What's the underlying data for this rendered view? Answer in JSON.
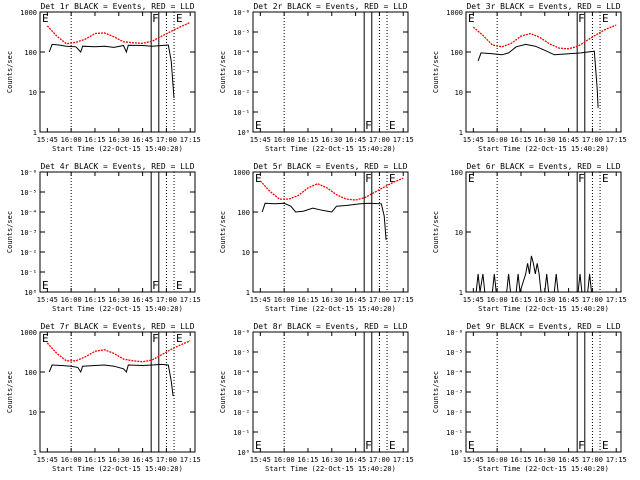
{
  "colors": {
    "events": "#000000",
    "lld": "#ff0000",
    "background": "#ffffff"
  },
  "chart_data": [
    {
      "type": "line",
      "title": "Det 1r BLACK = Events, RED = LLD",
      "xlabel": "Start Time (22-Oct-15 15:40:20)",
      "ylabel": "Counts/sec",
      "xticks": [
        "15:45",
        "16:00",
        "16:15",
        "16:30",
        "16:45",
        "17:00",
        "17:15"
      ],
      "yticks": [
        "1",
        "10",
        "100",
        "1000"
      ],
      "ylim": [
        1,
        1000
      ],
      "yscale": "log",
      "flag_labels": [
        "E",
        "F",
        "E"
      ],
      "series": [
        {
          "values": [
            [
              15.75,
              450
            ],
            [
              15.85,
              250
            ],
            [
              15.95,
              160
            ],
            [
              16.05,
              175
            ],
            [
              16.15,
              210
            ],
            [
              16.25,
              290
            ],
            [
              16.35,
              300
            ],
            [
              16.45,
              240
            ],
            [
              16.55,
              180
            ],
            [
              16.65,
              170
            ],
            [
              16.75,
              165
            ],
            [
              16.85,
              185
            ],
            [
              16.95,
              250
            ],
            [
              17.05,
              330
            ],
            [
              17.15,
              430
            ],
            [
              17.25,
              550
            ]
          ]
        },
        {
          "values": [
            [
              15.77,
              100
            ],
            [
              15.8,
              155
            ],
            [
              15.87,
              150
            ],
            [
              15.95,
              140
            ],
            [
              16.05,
              135
            ],
            [
              16.1,
              100
            ],
            [
              16.12,
              140
            ],
            [
              16.25,
              135
            ],
            [
              16.35,
              140
            ],
            [
              16.45,
              130
            ],
            [
              16.55,
              145
            ],
            [
              16.58,
              100
            ],
            [
              16.6,
              148
            ],
            [
              16.75,
              145
            ],
            [
              16.85,
              140
            ],
            [
              16.95,
              145
            ],
            [
              17.02,
              150
            ],
            [
              17.05,
              60
            ],
            [
              17.08,
              7
            ]
          ]
        }
      ]
    },
    {
      "type": "line",
      "title": "Det 2r BLACK = Events, RED = LLD",
      "xlabel": "Start Time (22-Oct-15 15:40:20)",
      "ylabel": "Counts/sec",
      "xticks": [
        "15:45",
        "16:00",
        "16:15",
        "16:30",
        "16:45",
        "17:00",
        "17:15"
      ],
      "yticks": [
        "10⁰",
        "10⁻¹",
        "10⁻²",
        "10⁻³",
        "10⁻⁴",
        "10⁻⁵",
        "10⁻⁶"
      ],
      "ylim": [
        1,
        1e-06
      ],
      "yscale": "log",
      "flag_labels": [
        "E",
        "F",
        "E"
      ],
      "series": []
    },
    {
      "type": "line",
      "title": "Det 3r BLACK = Events, RED = LLD",
      "xlabel": "Start Time (22-Oct-15 15:40:20)",
      "ylabel": "Counts/sec",
      "xticks": [
        "15:45",
        "16:00",
        "16:15",
        "16:30",
        "16:45",
        "17:00",
        "17:15"
      ],
      "yticks": [
        "1",
        "10",
        "100",
        "1000"
      ],
      "ylim": [
        1,
        1000
      ],
      "yscale": "log",
      "flag_labels": [
        "E",
        "F",
        "E"
      ],
      "series": [
        {
          "values": [
            [
              15.75,
              420
            ],
            [
              15.85,
              260
            ],
            [
              15.95,
              150
            ],
            [
              16.05,
              135
            ],
            [
              16.15,
              165
            ],
            [
              16.25,
              250
            ],
            [
              16.35,
              290
            ],
            [
              16.45,
              230
            ],
            [
              16.55,
              160
            ],
            [
              16.65,
              125
            ],
            [
              16.75,
              120
            ],
            [
              16.85,
              140
            ],
            [
              16.95,
              200
            ],
            [
              17.05,
              280
            ],
            [
              17.15,
              380
            ],
            [
              17.25,
              470
            ]
          ]
        },
        {
          "values": [
            [
              15.8,
              60
            ],
            [
              15.83,
              95
            ],
            [
              15.95,
              90
            ],
            [
              16.05,
              85
            ],
            [
              16.12,
              95
            ],
            [
              16.2,
              135
            ],
            [
              16.3,
              155
            ],
            [
              16.4,
              140
            ],
            [
              16.5,
              110
            ],
            [
              16.6,
              85
            ],
            [
              16.75,
              90
            ],
            [
              16.88,
              95
            ],
            [
              16.95,
              100
            ],
            [
              17.02,
              105
            ],
            [
              17.05,
              12
            ],
            [
              17.06,
              4
            ]
          ]
        }
      ]
    },
    {
      "type": "line",
      "title": "Det 4r BLACK = Events, RED = LLD",
      "xlabel": "Start Time (22-Oct-15 15:40:20)",
      "ylabel": "Counts/sec",
      "xticks": [
        "15:45",
        "16:00",
        "16:15",
        "16:30",
        "16:45",
        "17:00",
        "17:15"
      ],
      "yticks": [
        "10⁰",
        "10⁻¹",
        "10⁻²",
        "10⁻³",
        "10⁻⁴",
        "10⁻⁵",
        "10⁻⁶"
      ],
      "ylim": [
        1,
        1e-06
      ],
      "yscale": "log",
      "flag_labels": [
        "E",
        "F",
        "E"
      ],
      "series": []
    },
    {
      "type": "line",
      "title": "Det 5r BLACK = Events, RED = LLD",
      "xlabel": "Start Time (22-Oct-15 15:40:20)",
      "ylabel": "Counts/sec",
      "xticks": [
        "15:45",
        "16:00",
        "16:15",
        "16:30",
        "16:45",
        "17:00",
        "17:15"
      ],
      "yticks": [
        "1",
        "10",
        "100",
        "1000"
      ],
      "ylim": [
        1,
        1000
      ],
      "yscale": "log",
      "flag_labels": [
        "E",
        "F",
        "E"
      ],
      "series": [
        {
          "values": [
            [
              15.75,
              600
            ],
            [
              15.85,
              330
            ],
            [
              15.95,
              210
            ],
            [
              16.05,
              210
            ],
            [
              16.15,
              260
            ],
            [
              16.25,
              400
            ],
            [
              16.35,
              510
            ],
            [
              16.45,
              400
            ],
            [
              16.55,
              270
            ],
            [
              16.65,
              210
            ],
            [
              16.75,
              200
            ],
            [
              16.85,
              230
            ],
            [
              16.95,
              310
            ],
            [
              17.05,
              420
            ],
            [
              17.15,
              560
            ],
            [
              17.25,
              700
            ]
          ]
        },
        {
          "values": [
            [
              15.77,
              100
            ],
            [
              15.8,
              165
            ],
            [
              15.9,
              160
            ],
            [
              16.0,
              165
            ],
            [
              16.07,
              140
            ],
            [
              16.12,
              100
            ],
            [
              16.2,
              105
            ],
            [
              16.3,
              125
            ],
            [
              16.4,
              110
            ],
            [
              16.5,
              100
            ],
            [
              16.55,
              140
            ],
            [
              16.65,
              145
            ],
            [
              16.8,
              160
            ],
            [
              16.9,
              165
            ],
            [
              17.02,
              160
            ],
            [
              17.05,
              80
            ],
            [
              17.07,
              20
            ]
          ]
        }
      ]
    },
    {
      "type": "line",
      "title": "Det 6r BLACK = Events, RED = LLD",
      "xlabel": "Start Time (22-Oct-15 15:40:20)",
      "ylabel": "Counts/sec",
      "xticks": [
        "15:45",
        "16:00",
        "16:15",
        "16:30",
        "16:45",
        "17:00",
        "17:15"
      ],
      "yticks": [
        "1",
        "10",
        "100"
      ],
      "ylim": [
        1,
        100
      ],
      "yscale": "log",
      "flag_labels": [
        "E",
        "F",
        "E"
      ],
      "series": [
        {
          "values": [
            [
              15.78,
              1
            ],
            [
              15.8,
              2
            ],
            [
              15.82,
              1
            ],
            [
              15.85,
              2
            ],
            [
              15.87,
              1
            ],
            [
              15.95,
              1
            ],
            [
              15.97,
              2
            ],
            [
              15.99,
              1
            ],
            [
              16.1,
              1
            ],
            [
              16.12,
              2
            ],
            [
              16.14,
              1
            ],
            [
              16.2,
              1
            ],
            [
              16.22,
              2
            ],
            [
              16.24,
              1
            ],
            [
              16.3,
              2
            ],
            [
              16.32,
              3
            ],
            [
              16.34,
              2
            ],
            [
              16.36,
              4
            ],
            [
              16.38,
              3
            ],
            [
              16.4,
              2
            ],
            [
              16.42,
              3
            ],
            [
              16.44,
              2
            ],
            [
              16.46,
              1
            ],
            [
              16.5,
              1
            ],
            [
              16.52,
              2
            ],
            [
              16.54,
              1
            ],
            [
              16.6,
              1
            ],
            [
              16.62,
              2
            ],
            [
              16.64,
              1
            ],
            [
              16.85,
              1
            ],
            [
              16.87,
              2
            ],
            [
              16.89,
              1
            ],
            [
              16.95,
              1
            ],
            [
              16.97,
              2
            ],
            [
              16.99,
              1
            ]
          ]
        }
      ]
    },
    {
      "type": "line",
      "title": "Det 7r BLACK = Events, RED = LLD",
      "xlabel": "Start Time (22-Oct-15 15:40:20)",
      "ylabel": "Counts/sec",
      "xticks": [
        "15:45",
        "16:00",
        "16:15",
        "16:30",
        "16:45",
        "17:00",
        "17:15"
      ],
      "yticks": [
        "1",
        "10",
        "100",
        "1000"
      ],
      "ylim": [
        1,
        1000
      ],
      "yscale": "log",
      "flag_labels": [
        "E",
        "F",
        "E"
      ],
      "series": [
        {
          "values": [
            [
              15.75,
              530
            ],
            [
              15.85,
              290
            ],
            [
              15.95,
              190
            ],
            [
              16.05,
              190
            ],
            [
              16.15,
              240
            ],
            [
              16.25,
              330
            ],
            [
              16.35,
              360
            ],
            [
              16.45,
              290
            ],
            [
              16.55,
              210
            ],
            [
              16.65,
              190
            ],
            [
              16.75,
              180
            ],
            [
              16.85,
              200
            ],
            [
              16.95,
              270
            ],
            [
              17.05,
              370
            ],
            [
              17.15,
              480
            ],
            [
              17.25,
              600
            ]
          ]
        },
        {
          "values": [
            [
              15.77,
              100
            ],
            [
              15.8,
              150
            ],
            [
              15.9,
              145
            ],
            [
              16.0,
              140
            ],
            [
              16.07,
              130
            ],
            [
              16.1,
              100
            ],
            [
              16.12,
              140
            ],
            [
              16.25,
              145
            ],
            [
              16.35,
              150
            ],
            [
              16.45,
              140
            ],
            [
              16.55,
              120
            ],
            [
              16.58,
              100
            ],
            [
              16.6,
              150
            ],
            [
              16.75,
              145
            ],
            [
              16.85,
              150
            ],
            [
              16.95,
              155
            ],
            [
              17.02,
              150
            ],
            [
              17.05,
              60
            ],
            [
              17.07,
              25
            ]
          ]
        }
      ]
    },
    {
      "type": "line",
      "title": "Det 8r BLACK = Events, RED = LLD",
      "xlabel": "Start Time (22-Oct-15 15:40:20)",
      "ylabel": "Counts/sec",
      "xticks": [
        "15:45",
        "16:00",
        "16:15",
        "16:30",
        "16:45",
        "17:00",
        "17:15"
      ],
      "yticks": [
        "10⁰",
        "10⁻¹",
        "10⁻²",
        "10⁻³",
        "10⁻⁴",
        "10⁻⁵",
        "10⁻⁶"
      ],
      "ylim": [
        1,
        1e-06
      ],
      "yscale": "log",
      "flag_labels": [
        "E",
        "F",
        "E"
      ],
      "series": []
    },
    {
      "type": "line",
      "title": "Det 9r BLACK = Events, RED = LLD",
      "xlabel": "Start Time (22-Oct-15 15:40:20)",
      "ylabel": "Counts/sec",
      "xticks": [
        "15:45",
        "16:00",
        "16:15",
        "16:30",
        "16:45",
        "17:00",
        "17:15"
      ],
      "yticks": [
        "10⁰",
        "10⁻¹",
        "10⁻²",
        "10⁻³",
        "10⁻⁴",
        "10⁻⁵",
        "10⁻⁶"
      ],
      "ylim": [
        1,
        1e-06
      ],
      "yscale": "log",
      "flag_labels": [
        "E",
        "F",
        "E"
      ],
      "series": []
    }
  ]
}
